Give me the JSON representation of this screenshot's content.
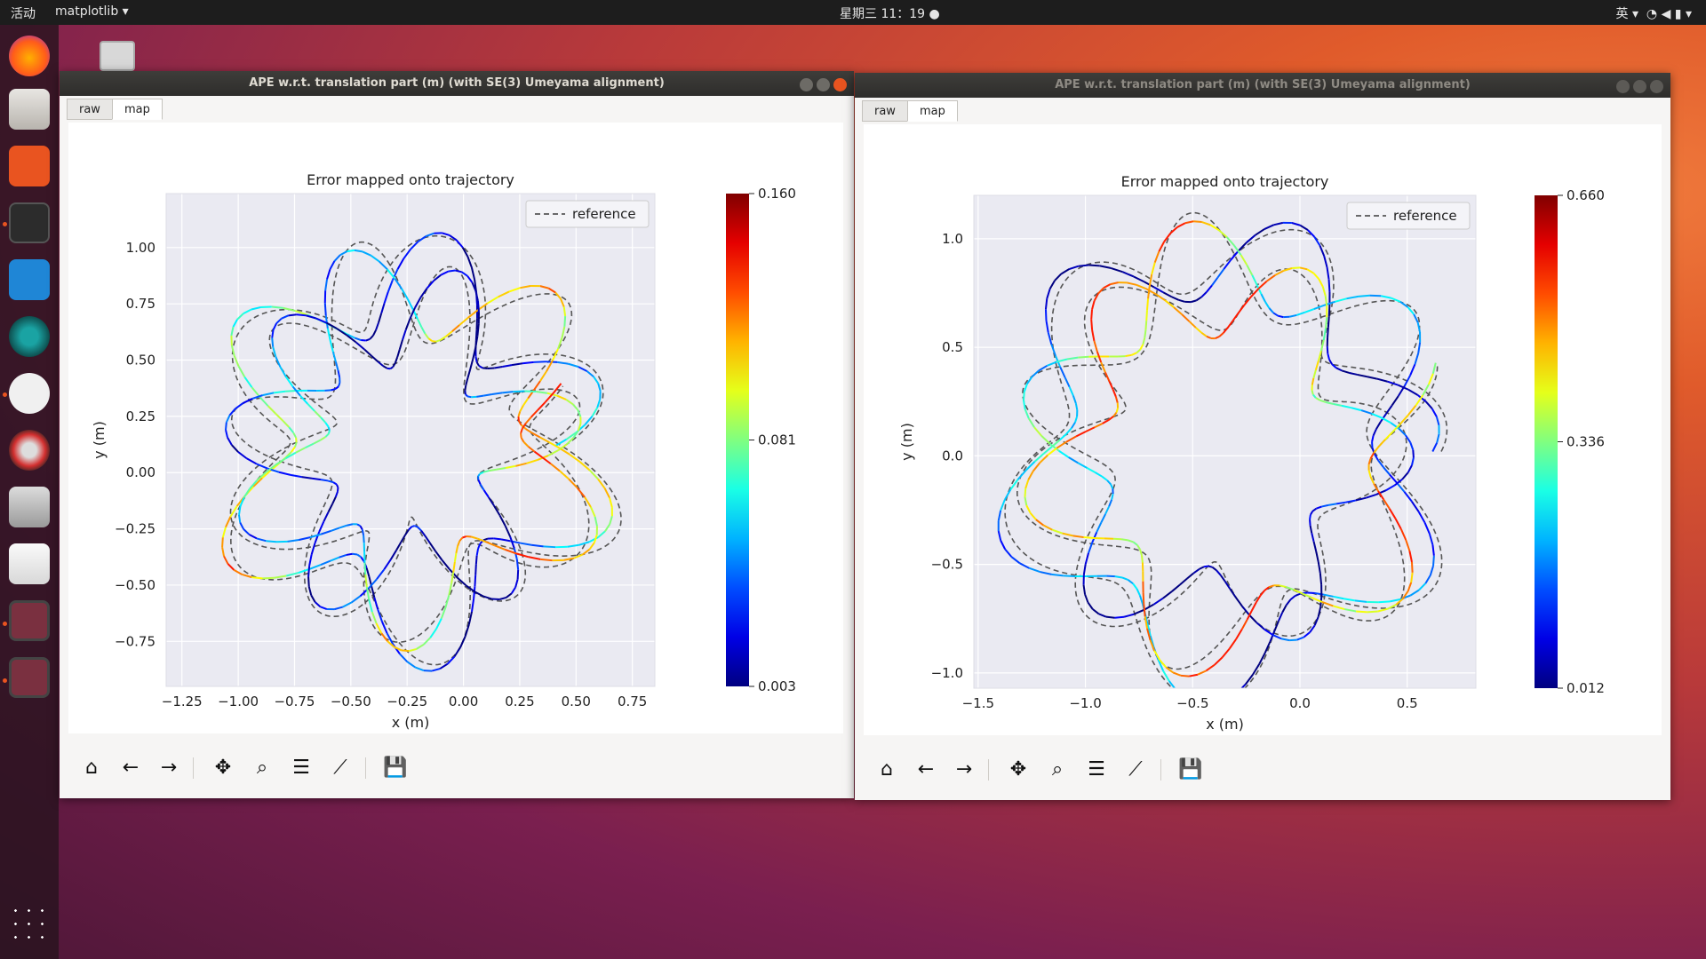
{
  "topbar": {
    "activities": "活动",
    "app_menu": "matplotlib ▾",
    "clock": "星期三 11：19 ●",
    "input_method": "英 ▾"
  },
  "windows": [
    {
      "title": "APE w.r.t. translation part (m) (with SE(3) Umeyama alignment)",
      "tabs": [
        {
          "label": "raw"
        },
        {
          "label": "map"
        }
      ],
      "active_tab": "map",
      "chart_data": {
        "type": "line",
        "title": "Error mapped onto trajectory",
        "xlabel": "x (m)",
        "ylabel": "y (m)",
        "xlim": [
          -1.32,
          0.85
        ],
        "ylim": [
          -0.95,
          1.24
        ],
        "xticks": [
          "−1.25",
          "−1.00",
          "−0.75",
          "−0.50",
          "−0.25",
          "0.00",
          "0.25",
          "0.50",
          "0.75"
        ],
        "xtick_values": [
          -1.25,
          -1.0,
          -0.75,
          -0.5,
          -0.25,
          0.0,
          0.25,
          0.5,
          0.75
        ],
        "yticks": [
          "1.00",
          "0.75",
          "0.50",
          "0.25",
          "0.00",
          "−0.25",
          "−0.50",
          "−0.75"
        ],
        "ytick_values": [
          1.0,
          0.75,
          0.5,
          0.25,
          0.0,
          -0.25,
          -0.5,
          -0.75
        ],
        "legend": {
          "entries": [
            "reference"
          ],
          "placement": "top-right"
        },
        "colorbar": {
          "colormap": "jet",
          "min_label": "0.003",
          "mid_label": "0.081",
          "max_label": "0.160"
        },
        "trajectory_model": {
          "center": [
            -0.23,
            0.12
          ],
          "mean_radius": 0.64,
          "lobes": 17,
          "lobe_amplitude": 0.22,
          "ring_width": 0.1,
          "samples": 1500,
          "error_range": [
            0.003,
            0.16
          ]
        },
        "grid": true,
        "background": "#eaeaf2"
      }
    },
    {
      "title": "APE w.r.t. translation part (m) (with SE(3) Umeyama alignment)",
      "tabs": [
        {
          "label": "raw"
        },
        {
          "label": "map"
        }
      ],
      "active_tab": "map",
      "chart_data": {
        "type": "line",
        "title": "Error mapped onto trajectory",
        "xlabel": "x (m)",
        "ylabel": "y (m)",
        "xlim": [
          -1.52,
          0.82
        ],
        "ylim": [
          -1.07,
          1.2
        ],
        "xticks": [
          "−1.5",
          "−1.0",
          "−0.5",
          "0.0",
          "0.5"
        ],
        "xtick_values": [
          -1.5,
          -1.0,
          -0.5,
          0.0,
          0.5
        ],
        "yticks": [
          "1.0",
          "0.5",
          "0.0",
          "−0.5",
          "−1.0"
        ],
        "ytick_values": [
          1.0,
          0.5,
          0.0,
          -0.5,
          -1.0
        ],
        "legend": {
          "entries": [
            "reference"
          ],
          "placement": "top-right"
        },
        "colorbar": {
          "colormap": "jet",
          "min_label": "0.012",
          "mid_label": "0.336",
          "max_label": "0.660"
        },
        "trajectory_model": {
          "center": [
            -0.35,
            0.02
          ],
          "mean_radius": 0.8,
          "lobes": 17,
          "lobe_amplitude": 0.2,
          "ring_width": 0.12,
          "samples": 1500,
          "error_range": [
            0.012,
            0.66
          ]
        },
        "grid": true,
        "background": "#eaeaf2"
      }
    }
  ],
  "toolbar": [
    {
      "name": "home",
      "glyph": "⌂"
    },
    {
      "name": "back",
      "glyph": "←"
    },
    {
      "name": "forward",
      "glyph": "→"
    },
    {
      "name": "pan",
      "glyph": "✥"
    },
    {
      "name": "zoom",
      "glyph": "⌕"
    },
    {
      "name": "subplots",
      "glyph": "☰"
    },
    {
      "name": "customize",
      "glyph": "⟋"
    },
    {
      "name": "save",
      "glyph": "💾"
    }
  ],
  "colors": {
    "accent": "#e95420",
    "reference_line": "#555555"
  }
}
